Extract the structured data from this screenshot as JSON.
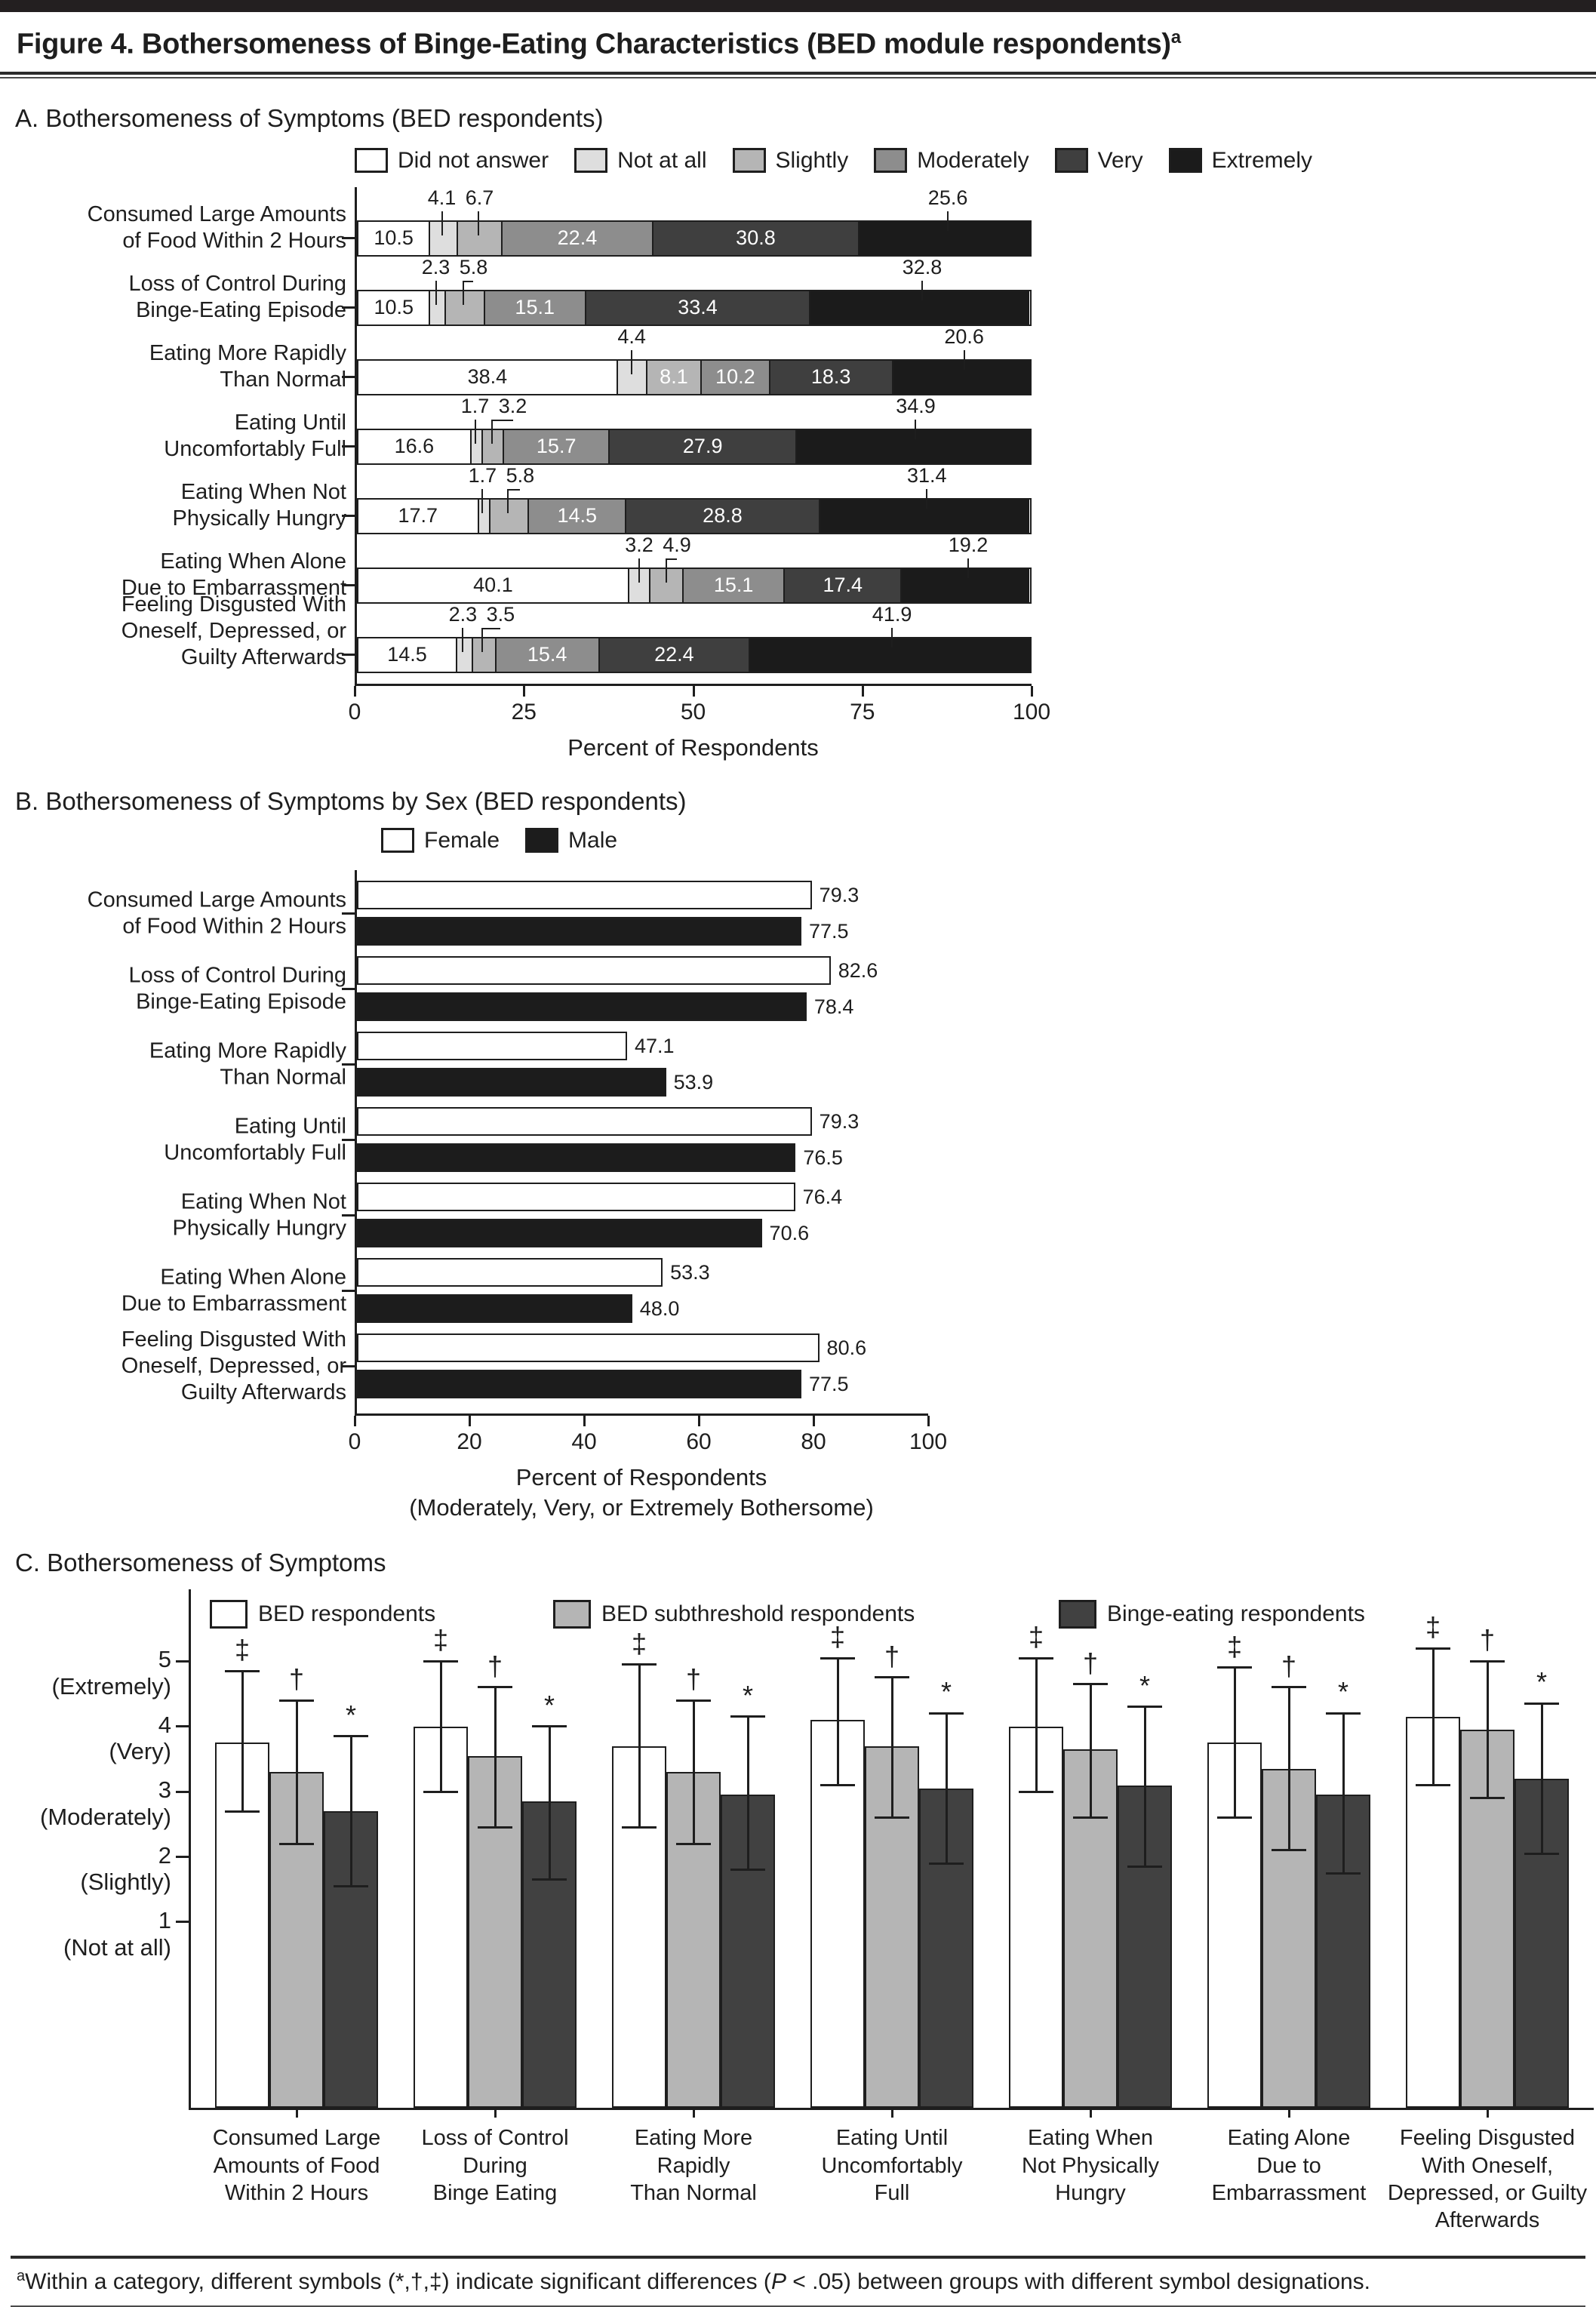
{
  "page": {
    "title": "Figure 4. Bothersomeness of Binge-Eating Characteristics (BED module respondents)",
    "title_sup": "a",
    "footnote": {
      "sup": "a",
      "pre": "Within a category, different symbols (*,†,‡) indicate significant differences (",
      "p_italic": "P",
      "post": " < .05) between groups with different symbol designations."
    }
  },
  "chart_data": [
    {
      "id": "panel_a",
      "type": "bar",
      "orientation": "horizontal",
      "stacked": true,
      "title": "A. Bothersomeness of Symptoms (BED respondents)",
      "xlabel": "Percent of Respondents",
      "xlim": [
        0,
        100
      ],
      "xticks": [
        0,
        25,
        50,
        75,
        100
      ],
      "grid": false,
      "legend_position": "top",
      "categories": [
        {
          "label_lines": [
            "Consumed Large Amounts",
            "of Food Within 2 Hours"
          ]
        },
        {
          "label_lines": [
            "Loss of Control During",
            "Binge-Eating Episode"
          ]
        },
        {
          "label_lines": [
            "Eating More Rapidly",
            "Than Normal"
          ]
        },
        {
          "label_lines": [
            "Eating Until",
            "Uncomfortably Full"
          ]
        },
        {
          "label_lines": [
            "Eating When Not",
            "Physically Hungry"
          ]
        },
        {
          "label_lines": [
            "Eating When Alone",
            "Due to Embarrassment"
          ]
        },
        {
          "label_lines": [
            "Feeling Disgusted With",
            "Oneself, Depressed, or",
            "Guilty Afterwards"
          ]
        }
      ],
      "series": [
        {
          "name": "Did not answer",
          "color": "#ffffff",
          "values": [
            10.5,
            10.5,
            38.4,
            16.6,
            17.7,
            40.1,
            14.5
          ]
        },
        {
          "name": "Not at all",
          "color": "#dedede",
          "values": [
            4.1,
            2.3,
            4.4,
            1.7,
            1.7,
            3.2,
            2.3
          ]
        },
        {
          "name": "Slightly",
          "color": "#b5b5b5",
          "values": [
            6.7,
            5.8,
            8.1,
            3.2,
            5.8,
            4.9,
            3.5
          ]
        },
        {
          "name": "Moderately",
          "color": "#8d8d8d",
          "values": [
            22.4,
            15.1,
            10.2,
            15.7,
            14.5,
            15.1,
            15.4
          ]
        },
        {
          "name": "Very",
          "color": "#3f3f3f",
          "values": [
            30.8,
            33.4,
            18.3,
            27.9,
            28.8,
            17.4,
            22.4
          ]
        },
        {
          "name": "Extremely",
          "color": "#1b1b1b",
          "values": [
            25.6,
            32.8,
            20.6,
            34.9,
            31.4,
            19.2,
            41.9
          ]
        }
      ]
    },
    {
      "id": "panel_b",
      "type": "bar",
      "orientation": "horizontal",
      "stacked": false,
      "title": "B. Bothersomeness of Symptoms by Sex (BED respondents)",
      "xlabel_lines": [
        "Percent of Respondents",
        "(Moderately, Very, or Extremely Bothersome)"
      ],
      "xlim": [
        0,
        100
      ],
      "xticks": [
        0,
        20,
        40,
        60,
        80,
        100
      ],
      "grid": false,
      "legend_position": "top",
      "categories": [
        {
          "label_lines": [
            "Consumed Large Amounts",
            "of Food Within 2 Hours"
          ]
        },
        {
          "label_lines": [
            "Loss of Control During",
            "Binge-Eating Episode"
          ]
        },
        {
          "label_lines": [
            "Eating More Rapidly",
            "Than Normal"
          ]
        },
        {
          "label_lines": [
            "Eating Until",
            "Uncomfortably Full"
          ]
        },
        {
          "label_lines": [
            "Eating When Not",
            "Physically Hungry"
          ]
        },
        {
          "label_lines": [
            "Eating When Alone",
            "Due to Embarrassment"
          ]
        },
        {
          "label_lines": [
            "Feeling Disgusted With",
            "Oneself, Depressed, or",
            "Guilty Afterwards"
          ]
        }
      ],
      "series": [
        {
          "name": "Female",
          "color": "#ffffff",
          "values": [
            79.3,
            82.6,
            47.1,
            79.3,
            76.4,
            53.3,
            80.6
          ]
        },
        {
          "name": "Male",
          "color": "#1c1c1c",
          "values": [
            77.5,
            78.4,
            53.9,
            76.5,
            70.6,
            48.0,
            77.5
          ]
        }
      ],
      "value_label_format": "one_decimal"
    },
    {
      "id": "panel_c",
      "type": "bar",
      "orientation": "vertical",
      "grouped": true,
      "error_bars": true,
      "title": "C. Bothersomeness of Symptoms",
      "ylim_display": [
        -1.85,
        6.1
      ],
      "yticks": [
        {
          "value": 5,
          "label": "(Extremely)"
        },
        {
          "value": 4,
          "label": "(Very)"
        },
        {
          "value": 3,
          "label": "(Moderately)"
        },
        {
          "value": 2,
          "label": "(Slightly)"
        },
        {
          "value": 1,
          "label": "(Not at all)"
        }
      ],
      "grid": false,
      "legend_position": "top-inside",
      "categories": [
        {
          "label_lines": [
            "Consumed Large",
            "Amounts of Food",
            "Within 2 Hours"
          ]
        },
        {
          "label_lines": [
            "Loss of Control",
            "During",
            "Binge Eating"
          ]
        },
        {
          "label_lines": [
            "Eating More",
            "Rapidly",
            "Than Normal"
          ]
        },
        {
          "label_lines": [
            "Eating Until",
            "Uncomfortably",
            "Full"
          ]
        },
        {
          "label_lines": [
            "Eating When",
            "Not Physically",
            "Hungry"
          ]
        },
        {
          "label_lines": [
            "Eating Alone",
            "Due to",
            "Embarrassment"
          ]
        },
        {
          "label_lines": [
            "Feeling Disgusted",
            "With Oneself,",
            "Depressed, or Guilty",
            "Afterwards"
          ]
        }
      ],
      "series": [
        {
          "name": "BED respondents",
          "color": "#ffffff",
          "symbol": "‡",
          "means": [
            3.75,
            4.0,
            3.7,
            4.1,
            4.0,
            3.75,
            4.15
          ],
          "err_low": [
            2.7,
            3.0,
            2.45,
            3.1,
            3.0,
            2.6,
            3.1
          ],
          "err_high": [
            4.85,
            5.0,
            4.95,
            5.05,
            5.05,
            4.9,
            5.2
          ]
        },
        {
          "name": "BED subthreshold respondents",
          "color": "#b5b5b5",
          "symbol": "†",
          "means": [
            3.3,
            3.55,
            3.3,
            3.7,
            3.65,
            3.35,
            3.95
          ],
          "err_low": [
            2.2,
            2.45,
            2.2,
            2.6,
            2.6,
            2.1,
            2.9
          ],
          "err_high": [
            4.4,
            4.6,
            4.4,
            4.75,
            4.65,
            4.6,
            5.0
          ]
        },
        {
          "name": "Binge-eating respondents",
          "color": "#414141",
          "symbol": "*",
          "means": [
            2.7,
            2.85,
            2.95,
            3.05,
            3.1,
            2.95,
            3.2
          ],
          "err_low": [
            1.55,
            1.65,
            1.8,
            1.9,
            1.85,
            1.75,
            2.05
          ],
          "err_high": [
            3.85,
            4.0,
            4.15,
            4.2,
            4.3,
            4.2,
            4.35
          ]
        }
      ]
    }
  ]
}
